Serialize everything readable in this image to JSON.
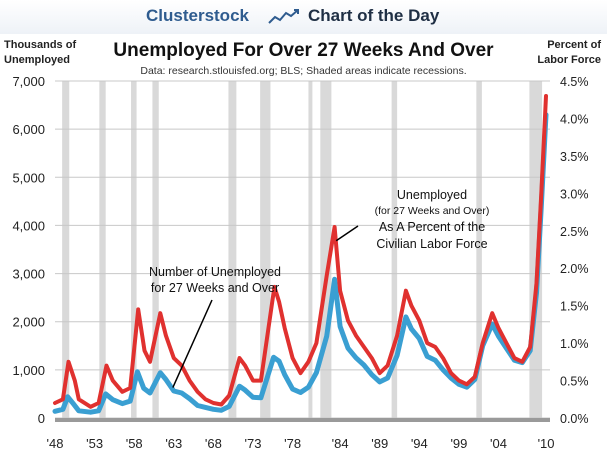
{
  "header": {
    "brand": "Clusterstock",
    "label": "Chart of the Day",
    "logo_icon": "rising-line-logo-icon"
  },
  "axis_titles": {
    "left_line1": "Thousands of",
    "left_line2": "Unemployed",
    "right_line1": "Percent of",
    "right_line2": "Labor Force"
  },
  "chart_data": {
    "type": "line",
    "title": "Unemployed For Over 27 Weeks And Over",
    "subtitle": "Data: research.stlouisfed.org; BLS; Shaded areas indicate recessions.",
    "x_ticks": [
      "'48",
      "'53",
      "'58",
      "'63",
      "'68",
      "'73",
      "'78",
      "'84",
      "'89",
      "'94",
      "'99",
      "'04",
      "'10"
    ],
    "xlim": [
      1948,
      2010.5
    ],
    "ylim_left": [
      0,
      7000
    ],
    "y_ticks_left": [
      "0",
      "1,000",
      "2,000",
      "3,000",
      "4,000",
      "5,000",
      "6,000",
      "7,000"
    ],
    "ylim_right": [
      0,
      4.5
    ],
    "y_ticks_right": [
      "0.0%",
      "0.5%",
      "1.0%",
      "1.5%",
      "2.0%",
      "2.5%",
      "3.0%",
      "3.5%",
      "4.0%",
      "4.5%"
    ],
    "grid": true,
    "recessions": [
      [
        1948.9,
        1949.8
      ],
      [
        1953.6,
        1954.4
      ],
      [
        1957.6,
        1958.3
      ],
      [
        1960.3,
        1961.1
      ],
      [
        1969.9,
        1970.9
      ],
      [
        1973.9,
        1975.2
      ],
      [
        1980.0,
        1980.5
      ],
      [
        1981.5,
        1982.9
      ],
      [
        1990.5,
        1991.2
      ],
      [
        2001.2,
        2001.9
      ],
      [
        2007.9,
        2009.5
      ]
    ],
    "annotations": [
      {
        "lines": [
          "Unemployed",
          "(for 27 Weeks and Over)",
          "As A Percent of the",
          "Civilian Labor Force"
        ],
        "target": [
          1983.0,
          2.5
        ]
      },
      {
        "lines": [
          "Number of Unemployed",
          "for 27 Weeks and Over"
        ],
        "target": [
          1962.5,
          550
        ]
      }
    ],
    "series": [
      {
        "axis": "left",
        "color": "#3a9fd2",
        "points": [
          [
            1948.0,
            140
          ],
          [
            1949.0,
            180
          ],
          [
            1949.6,
            440
          ],
          [
            1950.3,
            300
          ],
          [
            1951.0,
            150
          ],
          [
            1952.5,
            120
          ],
          [
            1953.5,
            150
          ],
          [
            1954.4,
            500
          ],
          [
            1955.3,
            380
          ],
          [
            1956.5,
            300
          ],
          [
            1957.5,
            350
          ],
          [
            1958.4,
            960
          ],
          [
            1959.2,
            620
          ],
          [
            1960.0,
            520
          ],
          [
            1961.3,
            940
          ],
          [
            1962.0,
            800
          ],
          [
            1963.0,
            560
          ],
          [
            1964.0,
            520
          ],
          [
            1965.0,
            400
          ],
          [
            1966.0,
            260
          ],
          [
            1967.0,
            220
          ],
          [
            1968.0,
            180
          ],
          [
            1969.0,
            160
          ],
          [
            1970.0,
            240
          ],
          [
            1971.3,
            660
          ],
          [
            1972.0,
            580
          ],
          [
            1973.0,
            430
          ],
          [
            1974.0,
            420
          ],
          [
            1975.6,
            1260
          ],
          [
            1976.3,
            1180
          ],
          [
            1977.0,
            900
          ],
          [
            1978.0,
            600
          ],
          [
            1979.0,
            530
          ],
          [
            1980.0,
            640
          ],
          [
            1981.0,
            940
          ],
          [
            1982.3,
            1700
          ],
          [
            1983.3,
            2880
          ],
          [
            1984.0,
            1900
          ],
          [
            1985.0,
            1450
          ],
          [
            1986.0,
            1250
          ],
          [
            1987.0,
            1100
          ],
          [
            1988.0,
            900
          ],
          [
            1989.0,
            750
          ],
          [
            1990.0,
            830
          ],
          [
            1991.2,
            1300
          ],
          [
            1992.3,
            2100
          ],
          [
            1993.0,
            1850
          ],
          [
            1994.0,
            1650
          ],
          [
            1995.0,
            1280
          ],
          [
            1996.0,
            1200
          ],
          [
            1997.0,
            1000
          ],
          [
            1998.0,
            830
          ],
          [
            1999.0,
            700
          ],
          [
            2000.0,
            640
          ],
          [
            2001.0,
            800
          ],
          [
            2002.0,
            1500
          ],
          [
            2003.2,
            1950
          ],
          [
            2004.0,
            1700
          ],
          [
            2005.0,
            1450
          ],
          [
            2006.0,
            1200
          ],
          [
            2007.0,
            1150
          ],
          [
            2008.0,
            1400
          ],
          [
            2008.8,
            2600
          ],
          [
            2009.4,
            4400
          ],
          [
            2010.0,
            6300
          ]
        ]
      },
      {
        "axis": "right",
        "color": "#e0312f",
        "points": [
          [
            1948.0,
            0.2
          ],
          [
            1949.0,
            0.25
          ],
          [
            1949.7,
            0.75
          ],
          [
            1950.5,
            0.5
          ],
          [
            1951.0,
            0.25
          ],
          [
            1952.5,
            0.15
          ],
          [
            1953.5,
            0.2
          ],
          [
            1954.5,
            0.7
          ],
          [
            1955.3,
            0.5
          ],
          [
            1956.5,
            0.35
          ],
          [
            1957.5,
            0.4
          ],
          [
            1958.5,
            1.45
          ],
          [
            1959.3,
            0.9
          ],
          [
            1960.0,
            0.75
          ],
          [
            1961.3,
            1.4
          ],
          [
            1962.0,
            1.1
          ],
          [
            1963.0,
            0.8
          ],
          [
            1964.0,
            0.7
          ],
          [
            1965.0,
            0.5
          ],
          [
            1966.0,
            0.35
          ],
          [
            1967.0,
            0.25
          ],
          [
            1968.0,
            0.2
          ],
          [
            1969.0,
            0.18
          ],
          [
            1970.0,
            0.3
          ],
          [
            1971.3,
            0.8
          ],
          [
            1972.0,
            0.7
          ],
          [
            1973.0,
            0.5
          ],
          [
            1974.0,
            0.5
          ],
          [
            1975.7,
            1.75
          ],
          [
            1976.3,
            1.55
          ],
          [
            1977.0,
            1.2
          ],
          [
            1978.0,
            0.8
          ],
          [
            1979.0,
            0.6
          ],
          [
            1980.0,
            0.75
          ],
          [
            1981.0,
            1.0
          ],
          [
            1982.3,
            1.9
          ],
          [
            1983.3,
            2.55
          ],
          [
            1984.0,
            1.7
          ],
          [
            1985.0,
            1.3
          ],
          [
            1986.0,
            1.1
          ],
          [
            1987.0,
            0.95
          ],
          [
            1988.0,
            0.8
          ],
          [
            1989.0,
            0.6
          ],
          [
            1990.0,
            0.7
          ],
          [
            1991.2,
            1.1
          ],
          [
            1992.3,
            1.7
          ],
          [
            1993.0,
            1.5
          ],
          [
            1994.0,
            1.3
          ],
          [
            1995.0,
            1.0
          ],
          [
            1996.0,
            0.95
          ],
          [
            1997.0,
            0.8
          ],
          [
            1998.0,
            0.6
          ],
          [
            1999.0,
            0.5
          ],
          [
            2000.0,
            0.45
          ],
          [
            2001.0,
            0.55
          ],
          [
            2002.0,
            1.0
          ],
          [
            2003.2,
            1.4
          ],
          [
            2004.0,
            1.2
          ],
          [
            2005.0,
            1.0
          ],
          [
            2006.0,
            0.8
          ],
          [
            2007.0,
            0.75
          ],
          [
            2008.0,
            0.95
          ],
          [
            2008.8,
            1.8
          ],
          [
            2009.4,
            3.0
          ],
          [
            2010.0,
            4.3
          ]
        ]
      }
    ]
  }
}
